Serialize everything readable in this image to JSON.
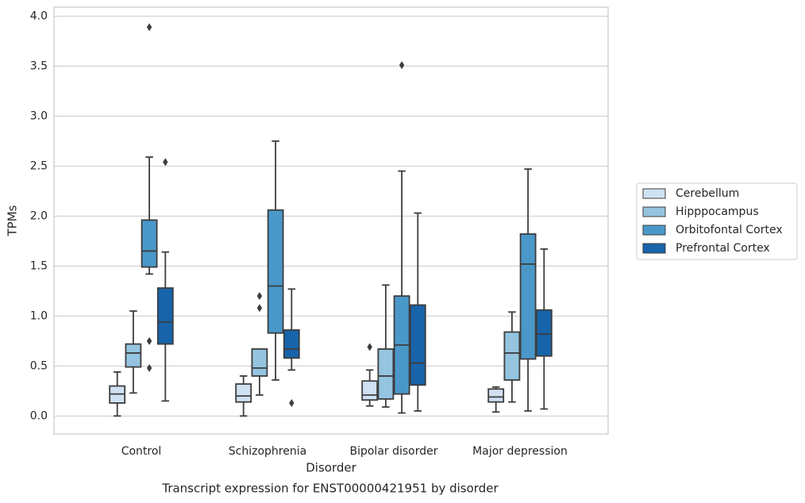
{
  "chart_data": {
    "type": "box",
    "title": "Transcript expression for ENST00000421951 by disorder",
    "x_label": "Disorder",
    "y_label": "TPMs",
    "categories": [
      "Control",
      "Schizophrenia",
      "Bipolar disorder",
      "Major depression"
    ],
    "ylim": [
      -0.18,
      4.09
    ],
    "yticks": [
      {
        "value": 0,
        "label": "0.0"
      },
      0.5,
      {
        "value": 1,
        "label": "1.0"
      },
      1.5,
      {
        "value": 2,
        "label": "2.0"
      },
      2.5,
      {
        "value": 3,
        "label": "3.0"
      },
      3.5,
      {
        "value": 4,
        "label": "4.0"
      }
    ],
    "grid": true,
    "legend": "right",
    "series": [
      {
        "name": "Cerebellum",
        "color": "#d0e1f2",
        "boxes": [
          {
            "whislo": 0.0,
            "q1": 0.13,
            "med": 0.22,
            "q3": 0.3,
            "whishi": 0.44,
            "fliers": []
          },
          {
            "whislo": 0.0,
            "q1": 0.14,
            "med": 0.2,
            "q3": 0.32,
            "whishi": 0.4,
            "fliers": []
          },
          {
            "whislo": 0.1,
            "q1": 0.16,
            "med": 0.21,
            "q3": 0.35,
            "whishi": 0.46,
            "fliers": [
              0.69
            ]
          },
          {
            "whislo": 0.04,
            "q1": 0.14,
            "med": 0.19,
            "q3": 0.27,
            "whishi": 0.29,
            "fliers": []
          }
        ]
      },
      {
        "name": "Hipppocampus",
        "color": "#94c4df",
        "boxes": [
          {
            "whislo": 0.23,
            "q1": 0.49,
            "med": 0.63,
            "q3": 0.72,
            "whishi": 1.05,
            "fliers": []
          },
          {
            "whislo": 0.21,
            "q1": 0.4,
            "med": 0.48,
            "q3": 0.67,
            "whishi": 0.67,
            "fliers": [
              1.2,
              1.08
            ]
          },
          {
            "whislo": 0.09,
            "q1": 0.17,
            "med": 0.4,
            "q3": 0.67,
            "whishi": 1.31,
            "fliers": []
          },
          {
            "whislo": 0.14,
            "q1": 0.36,
            "med": 0.63,
            "q3": 0.84,
            "whishi": 1.04,
            "fliers": []
          }
        ]
      },
      {
        "name": "Orbitofontal Cortex",
        "color": "#4a98c9",
        "boxes": [
          {
            "whislo": 1.42,
            "q1": 1.49,
            "med": 1.65,
            "q3": 1.96,
            "whishi": 2.59,
            "fliers": [
              3.89,
              0.75,
              0.48
            ]
          },
          {
            "whislo": 0.36,
            "q1": 0.83,
            "med": 1.3,
            "q3": 2.06,
            "whishi": 2.75,
            "fliers": []
          },
          {
            "whislo": 0.03,
            "q1": 0.22,
            "med": 0.71,
            "q3": 1.2,
            "whishi": 2.45,
            "fliers": [
              3.51
            ]
          },
          {
            "whislo": 0.05,
            "q1": 0.57,
            "med": 1.52,
            "q3": 1.82,
            "whishi": 2.47,
            "fliers": []
          }
        ]
      },
      {
        "name": "Prefrontal Cortex",
        "color": "#1764ab",
        "boxes": [
          {
            "whislo": 0.15,
            "q1": 0.72,
            "med": 0.94,
            "q3": 1.28,
            "whishi": 1.64,
            "fliers": [
              2.54
            ]
          },
          {
            "whislo": 0.46,
            "q1": 0.58,
            "med": 0.67,
            "q3": 0.86,
            "whishi": 1.27,
            "fliers": [
              0.13
            ]
          },
          {
            "whislo": 0.05,
            "q1": 0.31,
            "med": 0.53,
            "q3": 1.11,
            "whishi": 2.03,
            "fliers": []
          },
          {
            "whislo": 0.07,
            "q1": 0.6,
            "med": 0.82,
            "q3": 1.06,
            "whishi": 1.67,
            "fliers": []
          }
        ]
      }
    ]
  }
}
